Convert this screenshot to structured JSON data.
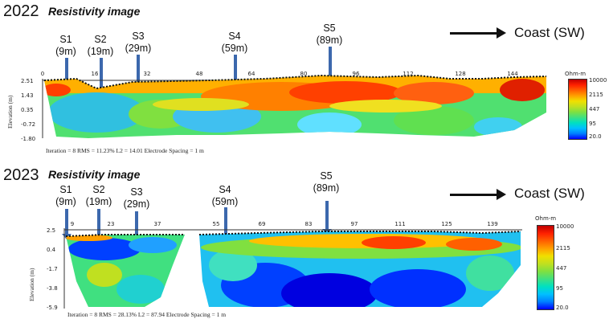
{
  "panel_2022": {
    "year": "2022",
    "subtitle": "Resistivity image",
    "direction": "Coast (SW)",
    "stations": [
      {
        "name": "S1",
        "pos": "(9m)"
      },
      {
        "name": "S2",
        "pos": "(19m)"
      },
      {
        "name": "S3",
        "pos": "(29m)"
      },
      {
        "name": "S4",
        "pos": "(59m)"
      },
      {
        "name": "S5",
        "pos": "(89m)"
      }
    ],
    "x_ticks": [
      "0",
      "16",
      "32",
      "48",
      "64",
      "80",
      "96",
      "112",
      "128",
      "144"
    ],
    "y_ticks": [
      "2.51",
      "1.43",
      "0.35",
      "-0.72",
      "-1.80"
    ],
    "y_label": "Elevation (m)",
    "legend_unit": "Ohm-m",
    "legend_values": [
      "10000",
      "2115",
      "447",
      "95",
      "20.0"
    ],
    "footer": "Iteration = 8    RMS = 11.23%    L2 = 14.01    Electrode Spacing = 1 m"
  },
  "panel_2023": {
    "year": "2023",
    "subtitle": "Resistivity image",
    "direction": "Coast (SW)",
    "stations": [
      {
        "name": "S1",
        "pos": "(9m)"
      },
      {
        "name": "S2",
        "pos": "(19m)"
      },
      {
        "name": "S3",
        "pos": "(29m)"
      },
      {
        "name": "S4",
        "pos": "(59m)"
      },
      {
        "name": "S5",
        "pos": "(89m)"
      }
    ],
    "x_ticks": [
      "9",
      "23",
      "37",
      "55",
      "69",
      "83",
      "97",
      "111",
      "125",
      "139"
    ],
    "y_ticks": [
      "2.5",
      "0.4",
      "-1.7",
      "-3.8",
      "-5.9"
    ],
    "y_label": "Elevation (m)",
    "legend_unit": "Ohm-m",
    "legend_values": [
      "10000",
      "2115",
      "447",
      "95",
      "20.0"
    ],
    "footer": "Iteration = 8    RMS = 28.13%    L2 = 87.94    Electrode Spacing = 1 m"
  },
  "colors": {
    "scale": [
      "#0000ff",
      "#0080ff",
      "#00c0ff",
      "#00e0c0",
      "#40e080",
      "#80e040",
      "#c0e020",
      "#f0e000",
      "#ffa000",
      "#ff6000",
      "#ff2000",
      "#c00000"
    ],
    "arrow": "#3c68ad"
  }
}
